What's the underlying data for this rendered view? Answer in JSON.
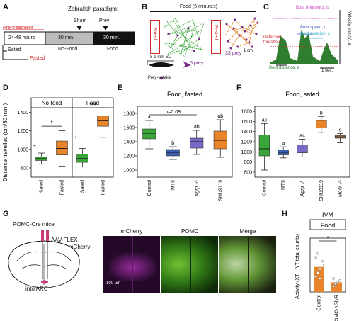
{
  "colors": {
    "sated_green": "#3aa63a",
    "fasted_orange": "#e9842a",
    "mtii_blue": "#3c5fb0",
    "agrp_purple": "#7a6ac8",
    "mc4r_brown": "#7a5a3a",
    "red": "#d12a2a",
    "purple": "#7a2c8a",
    "bout_green": "#2f7d2f"
  },
  "panels": {
    "A": {
      "letter": "A",
      "title": "Zebrafish paradigm:",
      "pretreatment": "Pre-treatment",
      "hours": "24-48 hours",
      "sham": "Sham",
      "prey": "Prey",
      "nofood_time": "30 min.",
      "nofood_label": "No-Food",
      "food_time": "30 min.",
      "food_label": "Food",
      "sated": "Sated",
      "fasted": "Fasted"
    },
    "B": {
      "letter": "B",
      "title": "Food (5 minutes)",
      "sated": "Sated",
      "fasted": "Fasted",
      "sated_prey": "5 prey",
      "fasted_prey": "33 prey",
      "scale": "1 cm",
      "fish_size": "8-9 mm SL",
      "prey_uptake": "Prey-uptake"
    },
    "C": {
      "letter": "C",
      "bout_frequency": "Bout frequency, b",
      "bout_speed": "Bout speed, d",
      "bout_duration": "Bout duration, c",
      "bout_distance": "Bout distance, e",
      "detection": "Detection",
      "threshold": "threshold",
      "ylabel": "Velocity (mm/s), a",
      "scale": "1 sec."
    },
    "G": {
      "letter": "G",
      "mice": "POMC-Cre mice",
      "virus_line1": "AAV-FLEX-",
      "virus_line2": "hGlyR-mCherry",
      "target": "into ARC",
      "img1": "mCherry",
      "img2": "POMC",
      "img3": "Merge",
      "scalebar": "100 μm"
    },
    "H": {
      "letter": "H"
    }
  },
  "chart_data": [
    {
      "panel": "D",
      "type": "box",
      "ylabel": "Distance travelled (cm/30 min.)",
      "ylim": [
        700,
        1450
      ],
      "yticks": [
        800,
        1000,
        1200,
        1400
      ],
      "facets": [
        "No-food",
        "Food"
      ],
      "categories": [
        "Sated",
        "Fasted",
        "Sated",
        "Fasted"
      ],
      "colors": [
        "#3aa63a",
        "#e9842a",
        "#3aa63a",
        "#e9842a"
      ],
      "boxes": [
        {
          "whislo": 840,
          "q1": 880,
          "med": 900,
          "q3": 920,
          "whishi": 960,
          "fliers": [
            1040
          ]
        },
        {
          "whislo": 820,
          "q1": 940,
          "med": 1010,
          "q3": 1090,
          "whishi": 1200,
          "fliers": []
        },
        {
          "whislo": 810,
          "q1": 860,
          "med": 900,
          "q3": 950,
          "whishi": 1010,
          "fliers": [
            1130
          ]
        },
        {
          "whislo": 1130,
          "q1": 1250,
          "med": 1310,
          "q3": 1360,
          "whishi": 1450,
          "fliers": []
        }
      ],
      "annotations": [
        "*",
        "***"
      ]
    },
    {
      "panel": "E",
      "type": "box",
      "title": "Food, fasted",
      "ylim": [
        900,
        1900
      ],
      "yticks": [
        1000,
        1200,
        1400,
        1600,
        1800
      ],
      "categories": [
        "Control",
        "MTII",
        "Agrp -/-",
        "SHU9119"
      ],
      "colors": [
        "#3aa63a",
        "#3c5fb0",
        "#7a6ac8",
        "#e9842a"
      ],
      "boxes": [
        {
          "whislo": 1300,
          "q1": 1440,
          "med": 1520,
          "q3": 1580,
          "whishi": 1700,
          "letter": "a"
        },
        {
          "whislo": 1150,
          "q1": 1200,
          "med": 1250,
          "q3": 1290,
          "whishi": 1330,
          "letter": "b"
        },
        {
          "whislo": 1220,
          "q1": 1310,
          "med": 1400,
          "q3": 1450,
          "whishi": 1560,
          "letter": "ab"
        },
        {
          "whislo": 1180,
          "q1": 1300,
          "med": 1420,
          "q3": 1550,
          "whishi": 1710,
          "letter": "ab"
        }
      ],
      "annotations": [
        "p=0.09"
      ]
    },
    {
      "panel": "F",
      "type": "box",
      "title": "Food, sated",
      "ylim": [
        500,
        1900
      ],
      "yticks": [
        600,
        800,
        1000,
        1200,
        1400,
        1600,
        1800
      ],
      "categories": [
        "Control",
        "MTII",
        "Agrp -/-",
        "SHU9119",
        "Mc4r -/-"
      ],
      "colors": [
        "#3aa63a",
        "#3c5fb0",
        "#7a6ac8",
        "#e9842a",
        "#7a5a3a"
      ],
      "boxes": [
        {
          "whislo": 640,
          "q1": 920,
          "med": 1060,
          "q3": 1330,
          "whishi": 1560,
          "letter": "ac"
        },
        {
          "whislo": 880,
          "q1": 940,
          "med": 990,
          "q3": 1040,
          "whishi": 1100,
          "letter": "a"
        },
        {
          "whislo": 900,
          "q1": 980,
          "med": 1040,
          "q3": 1140,
          "whishi": 1250,
          "letter": "ac"
        },
        {
          "whislo": 1380,
          "q1": 1470,
          "med": 1530,
          "q3": 1620,
          "whishi": 1700,
          "letter": "b"
        },
        {
          "whislo": 1180,
          "q1": 1270,
          "med": 1290,
          "q3": 1330,
          "whishi": 1360,
          "letter": "c"
        }
      ]
    },
    {
      "panel": "H",
      "type": "bar",
      "title": "IVM",
      "subtitle": "Food",
      "ylabel": "Activity (XT + YT total counts)",
      "categories": [
        "Control",
        "POMC-hGlyR"
      ],
      "values": [
        6500,
        2500
      ],
      "colors": [
        "#e9842a",
        "#e9842a"
      ],
      "ylim": [
        0,
        14000
      ],
      "points": [
        [
          4000,
          5000,
          6000,
          8000,
          9000,
          10000,
          3500,
          7000
        ],
        [
          1500,
          2000,
          2500,
          3000,
          3500,
          2200
        ]
      ],
      "annotations": [
        "*"
      ]
    }
  ]
}
